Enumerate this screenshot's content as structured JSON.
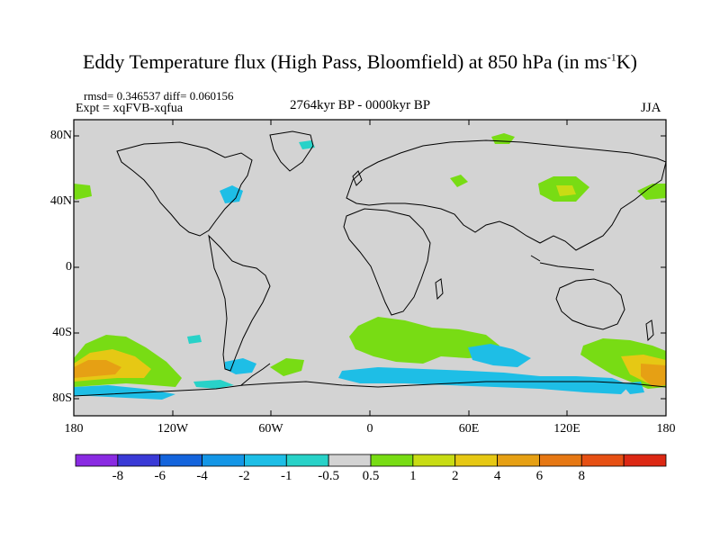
{
  "header": {
    "title_main": "Eddy Temperature flux (High Pass, Bloomfield) at 850 hPa (in ms",
    "title_sup": "-1",
    "title_end": "K)",
    "rmsd_line": "rmsd= 0.346537  diff= 0.060156",
    "expt_line": "Expt = xqFVB-xqfua",
    "period": "2764kyr BP - 0000kyr BP",
    "season": "JJA"
  },
  "map": {
    "background_color": "#d3d3d3",
    "lat_labels": [
      {
        "value": 80,
        "text": "80N"
      },
      {
        "value": 40,
        "text": "40N"
      },
      {
        "value": 0,
        "text": "0"
      },
      {
        "value": -40,
        "text": "40S"
      },
      {
        "value": -80,
        "text": "80S"
      }
    ],
    "lon_labels": [
      {
        "value": -180,
        "text": "180"
      },
      {
        "value": -120,
        "text": "120W"
      },
      {
        "value": -60,
        "text": "60W"
      },
      {
        "value": 0,
        "text": "0"
      },
      {
        "value": 60,
        "text": "60E"
      },
      {
        "value": 120,
        "text": "120E"
      },
      {
        "value": 180,
        "text": "180"
      }
    ]
  },
  "chart_data": {
    "type": "heatmap",
    "lat_range": [
      -90,
      90
    ],
    "lon_range": [
      -180,
      180
    ],
    "colorbar": {
      "bins": [
        {
          "color": "#8a2be2"
        },
        {
          "color": "#3a3ad6"
        },
        {
          "color": "#1464dc"
        },
        {
          "color": "#1496e6"
        },
        {
          "color": "#1ebee6"
        },
        {
          "color": "#28d2c8"
        },
        {
          "color": "#d3d3d3"
        },
        {
          "color": "#78dc14"
        },
        {
          "color": "#c8dc14"
        },
        {
          "color": "#e6c814"
        },
        {
          "color": "#e6a014"
        },
        {
          "color": "#e67814"
        },
        {
          "color": "#e65014"
        },
        {
          "color": "#dc2814"
        }
      ],
      "labels": [
        "-8",
        "-6",
        "-4",
        "-2",
        "-1",
        "-0.5",
        "0.5",
        "1",
        "2",
        "4",
        "6",
        "8"
      ]
    }
  }
}
